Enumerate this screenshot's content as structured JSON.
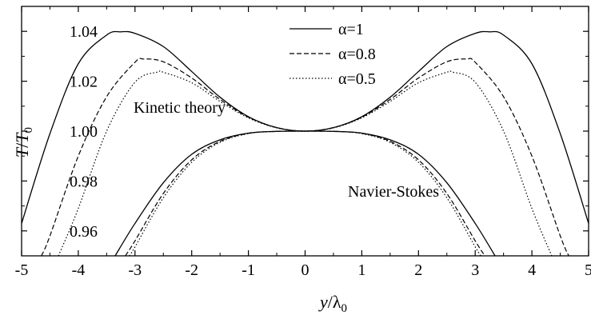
{
  "chart_data": {
    "type": "line",
    "xlabel_italic": "y",
    "xlabel_rest": "/λ",
    "xlabel_sub": "0",
    "ylabel_italic_a": "T",
    "ylabel_mid": "/",
    "ylabel_italic_b": "T",
    "ylabel_sub": "0",
    "xlim": [
      -5,
      5
    ],
    "ylim": [
      0.95,
      1.05
    ],
    "x_ticks": [
      -5,
      -4,
      -3,
      -2,
      -1,
      0,
      1,
      2,
      3,
      4,
      5
    ],
    "x_tick_labels": [
      "-5",
      "-4",
      "-3",
      "-2",
      "-1",
      "0",
      "1",
      "2",
      "3",
      "4",
      "5"
    ],
    "y_ticks": [
      0.96,
      0.98,
      1.0,
      1.02,
      1.04
    ],
    "y_tick_labels": [
      "0.96",
      "0.98",
      "1.00",
      "1.02",
      "1.04"
    ],
    "grid": false,
    "legend_position": "top-center",
    "annotations": {
      "kinetic": "Kinetic theory",
      "navier": "Navier-Stokes"
    },
    "series": [
      {
        "name": "α=1",
        "style": "solid",
        "group": "Kinetic theory",
        "x": [
          -5.0,
          -4.5,
          -4.0,
          -3.5,
          -3.25,
          -3.0,
          -2.5,
          -2.0,
          -1.5,
          -1.0,
          -0.5,
          0.0,
          0.5,
          1.0,
          1.5,
          2.0,
          2.5,
          3.0,
          3.25,
          3.5,
          4.0,
          4.5,
          5.0
        ],
        "y": [
          0.963,
          0.999,
          1.027,
          1.0385,
          1.0398,
          1.0392,
          1.0339,
          1.0239,
          1.0136,
          1.0058,
          1.0014,
          1.0,
          1.0014,
          1.0058,
          1.0136,
          1.0239,
          1.0339,
          1.0392,
          1.0398,
          1.0385,
          1.027,
          0.999,
          0.963
        ]
      },
      {
        "name": "α=0.8",
        "style": "dashed",
        "group": "Kinetic theory",
        "x": [
          -4.65,
          -4.5,
          -4.0,
          -3.5,
          -3.0,
          -2.85,
          -2.5,
          -2.0,
          -1.5,
          -1.0,
          -0.5,
          0.0,
          0.5,
          1.0,
          1.5,
          2.0,
          2.5,
          2.85,
          3.0,
          3.5,
          4.0,
          4.5,
          4.65
        ],
        "y": [
          0.95,
          0.958,
          0.99,
          1.0138,
          1.0276,
          1.0289,
          1.0278,
          1.0213,
          1.0127,
          1.0056,
          1.0014,
          1.0,
          1.0014,
          1.0056,
          1.0127,
          1.0213,
          1.0278,
          1.0289,
          1.0276,
          1.0138,
          0.99,
          0.958,
          0.95
        ]
      },
      {
        "name": "α=0.5",
        "style": "dotted",
        "group": "Kinetic theory",
        "x": [
          -4.35,
          -4.0,
          -3.5,
          -3.0,
          -2.6,
          -2.5,
          -2.0,
          -1.5,
          -1.0,
          -0.5,
          0.0,
          0.5,
          1.0,
          1.5,
          2.0,
          2.5,
          2.6,
          3.0,
          3.5,
          4.0,
          4.35
        ],
        "y": [
          0.95,
          0.969,
          1.0,
          1.0196,
          1.0237,
          1.0236,
          1.0194,
          1.0119,
          1.0053,
          1.0013,
          1.0,
          1.0013,
          1.0053,
          1.0119,
          1.0194,
          1.0236,
          1.0237,
          1.0196,
          1.0,
          0.969,
          0.95
        ]
      },
      {
        "name": "α=1 (Navier-Stokes)",
        "style": "solid",
        "group": "Navier-Stokes",
        "x": [
          -3.35,
          -3.0,
          -2.5,
          -2.0,
          -1.5,
          -1.0,
          -0.5,
          0.0,
          0.5,
          1.0,
          1.5,
          2.0,
          2.5,
          3.0,
          3.35
        ],
        "y": [
          0.95,
          0.963,
          0.9793,
          0.9907,
          0.9965,
          0.9992,
          0.9999,
          1.0,
          0.9999,
          0.9992,
          0.9965,
          0.9907,
          0.9793,
          0.963,
          0.95
        ]
      },
      {
        "name": "α=0.8 (Navier-Stokes)",
        "style": "dashed",
        "group": "Navier-Stokes",
        "x": [
          -3.17,
          -3.0,
          -2.5,
          -2.0,
          -1.5,
          -1.0,
          -0.5,
          0.0,
          0.5,
          1.0,
          1.5,
          2.0,
          2.5,
          3.0,
          3.17
        ],
        "y": [
          0.95,
          0.956,
          0.975,
          0.9885,
          0.9959,
          0.9991,
          0.9999,
          1.0,
          0.9999,
          0.9991,
          0.9959,
          0.9885,
          0.975,
          0.956,
          0.95
        ]
      },
      {
        "name": "α=0.5 (Navier-Stokes)",
        "style": "dotted",
        "group": "Navier-Stokes",
        "x": [
          -3.1,
          -3.0,
          -2.5,
          -2.0,
          -1.5,
          -1.0,
          -0.5,
          0.0,
          0.5,
          1.0,
          1.5,
          2.0,
          2.5,
          3.0,
          3.1
        ],
        "y": [
          0.95,
          0.9536,
          0.9733,
          0.9875,
          0.9955,
          0.999,
          0.9999,
          1.0,
          0.9999,
          0.999,
          0.9955,
          0.9875,
          0.9733,
          0.9536,
          0.95
        ]
      }
    ],
    "legend": [
      {
        "label": "α=1",
        "style": "solid"
      },
      {
        "label": "α=0.8",
        "style": "dashed"
      },
      {
        "label": "α=0.5",
        "style": "dotted"
      }
    ]
  }
}
